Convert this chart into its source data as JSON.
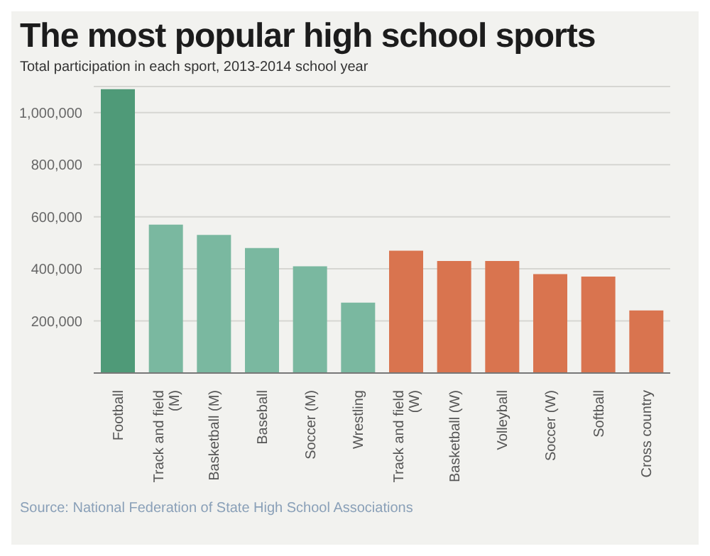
{
  "chart_data": {
    "type": "bar",
    "title": "The most popular high school sports",
    "subtitle": "Total participation in each sport, 2013-2014 school year",
    "categories": [
      "Football",
      "Track and field (M)",
      "Basketball (M)",
      "Baseball",
      "Soccer (M)",
      "Wrestling",
      "Track and field (W)",
      "Basketball (W)",
      "Volleyball",
      "Soccer (W)",
      "Softball",
      "Cross country"
    ],
    "values": [
      1090000,
      570000,
      530000,
      480000,
      410000,
      270000,
      470000,
      430000,
      430000,
      380000,
      370000,
      240000
    ],
    "colors": [
      "#4f9a78",
      "#7ab8a0",
      "#7ab8a0",
      "#7ab8a0",
      "#7ab8a0",
      "#7ab8a0",
      "#d9744f",
      "#d9744f",
      "#d9744f",
      "#d9744f",
      "#d9744f",
      "#d9744f"
    ],
    "ylim": [
      0,
      1100000
    ],
    "yticks": [
      {
        "value": 200000,
        "label": "200,000"
      },
      {
        "value": 400000,
        "label": "400,000"
      },
      {
        "value": 600000,
        "label": "600,000"
      },
      {
        "value": 800000,
        "label": "800,000"
      },
      {
        "value": 1000000,
        "label": "1,000,000"
      }
    ],
    "grid": "y",
    "annotations": [
      "Source: National Federation of State High School Associations"
    ]
  }
}
